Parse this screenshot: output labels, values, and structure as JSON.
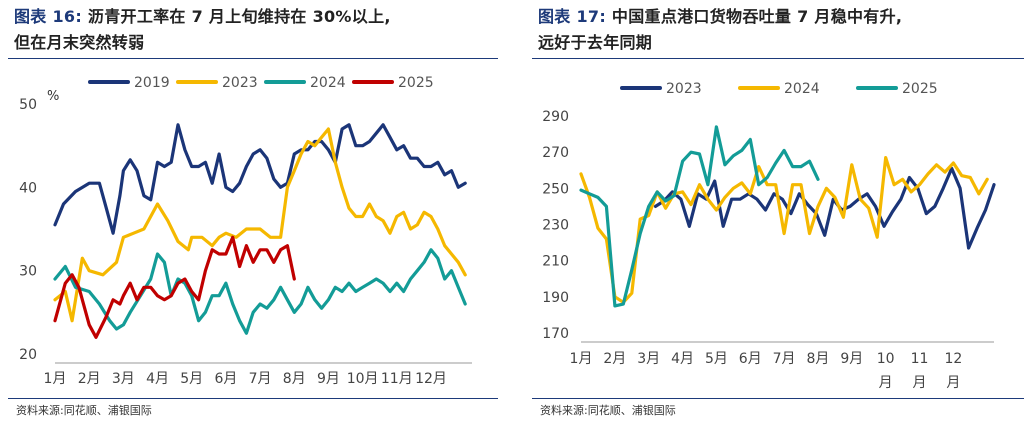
{
  "left": {
    "fig_label": "图表 16:",
    "title_line1": "沥青开工率在 7 月上旬维持在 30%以上,",
    "title_line2": "但在月末突然转弱",
    "source": "资料来源:同花顺、浦银国际"
  },
  "right": {
    "fig_label": "图表 17:",
    "title_line1": "中国重点港口货物吞吐量 7 月稳中有升,",
    "title_line2": "远好于去年同期",
    "source": "资料来源:同花顺、浦银国际"
  },
  "chart_data": [
    {
      "type": "line",
      "unit": "%",
      "ylim": [
        20,
        50
      ],
      "yticks": [
        20,
        30,
        40,
        50
      ],
      "xlim": [
        1,
        13.2
      ],
      "xticks": [
        {
          "label": "1月",
          "x": 1
        },
        {
          "label": "2月",
          "x": 2
        },
        {
          "label": "3月",
          "x": 3
        },
        {
          "label": "4月",
          "x": 4
        },
        {
          "label": "5月",
          "x": 5
        },
        {
          "label": "6月",
          "x": 6
        },
        {
          "label": "7月",
          "x": 7
        },
        {
          "label": "8月",
          "x": 8
        },
        {
          "label": "9月",
          "x": 9
        },
        {
          "label": "10月",
          "x": 10
        },
        {
          "label": "11月",
          "x": 11
        },
        {
          "label": "12月",
          "x": 12
        }
      ],
      "legend_position": "top",
      "series": [
        {
          "name": "2019",
          "color": "#1b3578",
          "x": [
            1,
            1.25,
            1.6,
            2,
            2.3,
            2.5,
            2.7,
            2.9,
            3,
            3.2,
            3.4,
            3.6,
            3.8,
            4,
            4.2,
            4.4,
            4.6,
            4.8,
            5,
            5.2,
            5.4,
            5.6,
            5.8,
            6,
            6.2,
            6.4,
            6.6,
            6.8,
            7,
            7.2,
            7.4,
            7.6,
            7.8,
            8,
            8.2,
            8.4,
            8.6,
            8.8,
            9,
            9.2,
            9.4,
            9.6,
            9.8,
            10,
            10.2,
            10.4,
            10.6,
            10.8,
            11,
            11.2,
            11.4,
            11.6,
            11.8,
            12,
            12.2,
            12.4,
            12.6,
            12.8,
            13
          ],
          "y": [
            35.5,
            38,
            39.5,
            40.5,
            40.5,
            37.5,
            34.5,
            39,
            42,
            43.3,
            42,
            39,
            38.5,
            43,
            42.5,
            43,
            47.5,
            44.5,
            42.5,
            42.5,
            43,
            40.5,
            44,
            40,
            39.5,
            40.5,
            42.5,
            44,
            44.5,
            43.5,
            41,
            40,
            40.5,
            44,
            44.5,
            44.5,
            45.5,
            45.5,
            44.5,
            43,
            47,
            47.5,
            45,
            45,
            45.5,
            46.5,
            47.5,
            46,
            44.5,
            45,
            43.5,
            43.5,
            42.5,
            42.5,
            43,
            41.5,
            42,
            40,
            40.5
          ]
        },
        {
          "name": "2023",
          "color": "#f5b800",
          "x": [
            1,
            1.3,
            1.5,
            1.8,
            2,
            2.4,
            2.8,
            3,
            3.3,
            3.6,
            4,
            4.3,
            4.6,
            4.9,
            5,
            5.3,
            5.6,
            5.8,
            6,
            6.3,
            6.6,
            7,
            7.3,
            7.6,
            7.8,
            8,
            8.2,
            8.4,
            8.6,
            8.8,
            9,
            9.2,
            9.4,
            9.6,
            9.8,
            10,
            10.2,
            10.4,
            10.6,
            10.8,
            11,
            11.2,
            11.4,
            11.6,
            11.8,
            12,
            12.2,
            12.4,
            12.6,
            12.8,
            13
          ],
          "y": [
            26.5,
            27.5,
            24,
            31.5,
            30,
            29.5,
            31,
            34,
            34.5,
            35,
            38,
            36,
            33.5,
            32.5,
            34,
            34,
            33,
            34,
            34.5,
            34,
            35,
            35,
            34,
            34,
            40,
            42,
            44,
            45.5,
            45,
            46,
            47,
            43,
            40,
            37.5,
            36.5,
            36.5,
            38,
            36.5,
            36,
            34.5,
            36.5,
            37,
            35,
            35.5,
            37,
            36.5,
            35,
            33,
            32,
            31,
            29.5
          ]
        },
        {
          "name": "2024",
          "color": "#139c97",
          "x": [
            1,
            1.3,
            1.6,
            2,
            2.3,
            2.6,
            2.8,
            3,
            3.2,
            3.5,
            3.8,
            4,
            4.2,
            4.4,
            4.6,
            4.8,
            5,
            5.2,
            5.4,
            5.6,
            5.8,
            6,
            6.2,
            6.4,
            6.6,
            6.8,
            7,
            7.2,
            7.4,
            7.6,
            7.8,
            8,
            8.2,
            8.4,
            8.6,
            8.8,
            9,
            9.2,
            9.4,
            9.6,
            9.8,
            10,
            10.2,
            10.4,
            10.6,
            10.8,
            11,
            11.2,
            11.4,
            11.6,
            11.8,
            12,
            12.2,
            12.4,
            12.6,
            12.8,
            13
          ],
          "y": [
            29,
            30.5,
            28,
            27.5,
            26,
            24,
            23,
            23.5,
            25,
            27,
            29,
            32,
            31,
            27,
            29,
            28.5,
            27,
            24,
            25,
            27,
            27,
            28.5,
            26,
            24,
            22.5,
            25,
            26,
            25.5,
            26.5,
            28,
            26.5,
            25,
            26,
            28,
            26.5,
            25.5,
            26.5,
            28,
            27.5,
            28.5,
            27.5,
            28,
            28.5,
            29,
            28.5,
            27.5,
            28.5,
            27.5,
            29,
            30,
            31,
            32.5,
            31.5,
            29,
            30,
            28,
            26
          ]
        },
        {
          "name": "2025",
          "color": "#c00000",
          "x": [
            1,
            1.3,
            1.5,
            1.7,
            2,
            2.2,
            2.5,
            2.7,
            2.9,
            3,
            3.2,
            3.4,
            3.6,
            3.8,
            4,
            4.2,
            4.4,
            4.6,
            4.8,
            5,
            5.2,
            5.4,
            5.6,
            5.8,
            6,
            6.2,
            6.4,
            6.6,
            6.8,
            7,
            7.2,
            7.4,
            7.6,
            7.8,
            8
          ],
          "y": [
            24,
            28.5,
            29.5,
            28,
            23.5,
            22,
            24.5,
            26.5,
            26,
            27,
            28.5,
            26.5,
            28,
            28,
            27,
            26.5,
            27,
            28.5,
            29,
            27.5,
            26.5,
            30,
            32.5,
            32,
            32,
            34,
            30.5,
            33,
            31,
            32.5,
            32.5,
            31,
            32.5,
            33,
            29
          ]
        }
      ]
    },
    {
      "type": "line",
      "ylim": [
        170,
        290
      ],
      "yticks": [
        170,
        190,
        210,
        230,
        250,
        270,
        290
      ],
      "xlim": [
        1,
        13.2
      ],
      "xticks": [
        {
          "label": "1月",
          "x": 1
        },
        {
          "label": "2月",
          "x": 2
        },
        {
          "label": "3月",
          "x": 3
        },
        {
          "label": "4月",
          "x": 4
        },
        {
          "label": "5月",
          "x": 5
        },
        {
          "label": "6月",
          "x": 6
        },
        {
          "label": "7月",
          "x": 7
        },
        {
          "label": "8月",
          "x": 8
        },
        {
          "label": "9月",
          "x": 9
        },
        {
          "label": "10",
          "label2": "月",
          "x": 10
        },
        {
          "label": "11",
          "label2": "月",
          "x": 11
        },
        {
          "label": "12",
          "label2": "月",
          "x": 12
        }
      ],
      "legend_position": "top",
      "series": [
        {
          "name": "2023",
          "color": "#1b3578",
          "x": [
            3.2,
            3.45,
            3.7,
            3.95,
            4.2,
            4.45,
            4.7,
            4.95,
            5.2,
            5.45,
            5.7,
            5.95,
            6.2,
            6.45,
            6.7,
            6.95,
            7.2,
            7.45,
            7.7,
            7.95,
            8.2,
            8.45,
            8.7,
            8.95,
            9.2,
            9.45,
            9.7,
            9.95,
            10.2,
            10.45,
            10.7,
            10.95,
            11.2,
            11.45,
            11.7,
            11.95,
            12.2,
            12.45,
            12.7,
            12.95,
            13.2
          ],
          "y": [
            240,
            243,
            248,
            244,
            229,
            247,
            244,
            254,
            229,
            244,
            244,
            247,
            244,
            238,
            247,
            244,
            236,
            247,
            241,
            236,
            224,
            244,
            238,
            240,
            244,
            247,
            240,
            229,
            237,
            244,
            256,
            250,
            236,
            240,
            250,
            261,
            250,
            217,
            228,
            238,
            252
          ]
        },
        {
          "name": "2024",
          "color": "#f5b800",
          "x": [
            1,
            1.25,
            1.5,
            1.75,
            2,
            2.25,
            2.5,
            2.75,
            3,
            3.25,
            3.5,
            3.75,
            4,
            4.25,
            4.5,
            4.75,
            5,
            5.25,
            5.5,
            5.75,
            6,
            6.25,
            6.5,
            6.75,
            7,
            7.25,
            7.5,
            7.75,
            8,
            8.25,
            8.5,
            8.75,
            9,
            9.25,
            9.5,
            9.75,
            10,
            10.25,
            10.5,
            10.75,
            11,
            11.25,
            11.5,
            11.75,
            12,
            12.25,
            12.5,
            12.75,
            13
          ],
          "y": [
            258,
            245,
            228,
            222,
            190,
            187,
            192,
            233,
            235,
            248,
            239,
            247,
            248,
            241,
            252,
            244,
            238,
            245,
            250,
            253,
            247,
            262,
            252,
            252,
            225,
            252,
            252,
            225,
            240,
            250,
            245,
            234,
            263,
            244,
            239,
            223,
            267,
            252,
            255,
            248,
            252,
            258,
            263,
            259,
            264,
            257,
            256,
            247,
            255
          ]
        },
        {
          "name": "2025",
          "color": "#139c97",
          "x": [
            1,
            1.25,
            1.5,
            1.75,
            2,
            2.25,
            2.5,
            2.75,
            3,
            3.25,
            3.5,
            3.75,
            4,
            4.25,
            4.5,
            4.75,
            5,
            5.25,
            5.5,
            5.75,
            6,
            6.25,
            6.5,
            6.75,
            7,
            7.25,
            7.5,
            7.75,
            8
          ],
          "y": [
            249,
            247,
            245,
            240,
            185,
            186,
            205,
            225,
            240,
            248,
            243,
            246,
            265,
            270,
            269,
            252,
            284,
            263,
            268,
            271,
            277,
            252,
            256,
            264,
            271,
            262,
            262,
            265,
            255
          ]
        }
      ]
    }
  ]
}
